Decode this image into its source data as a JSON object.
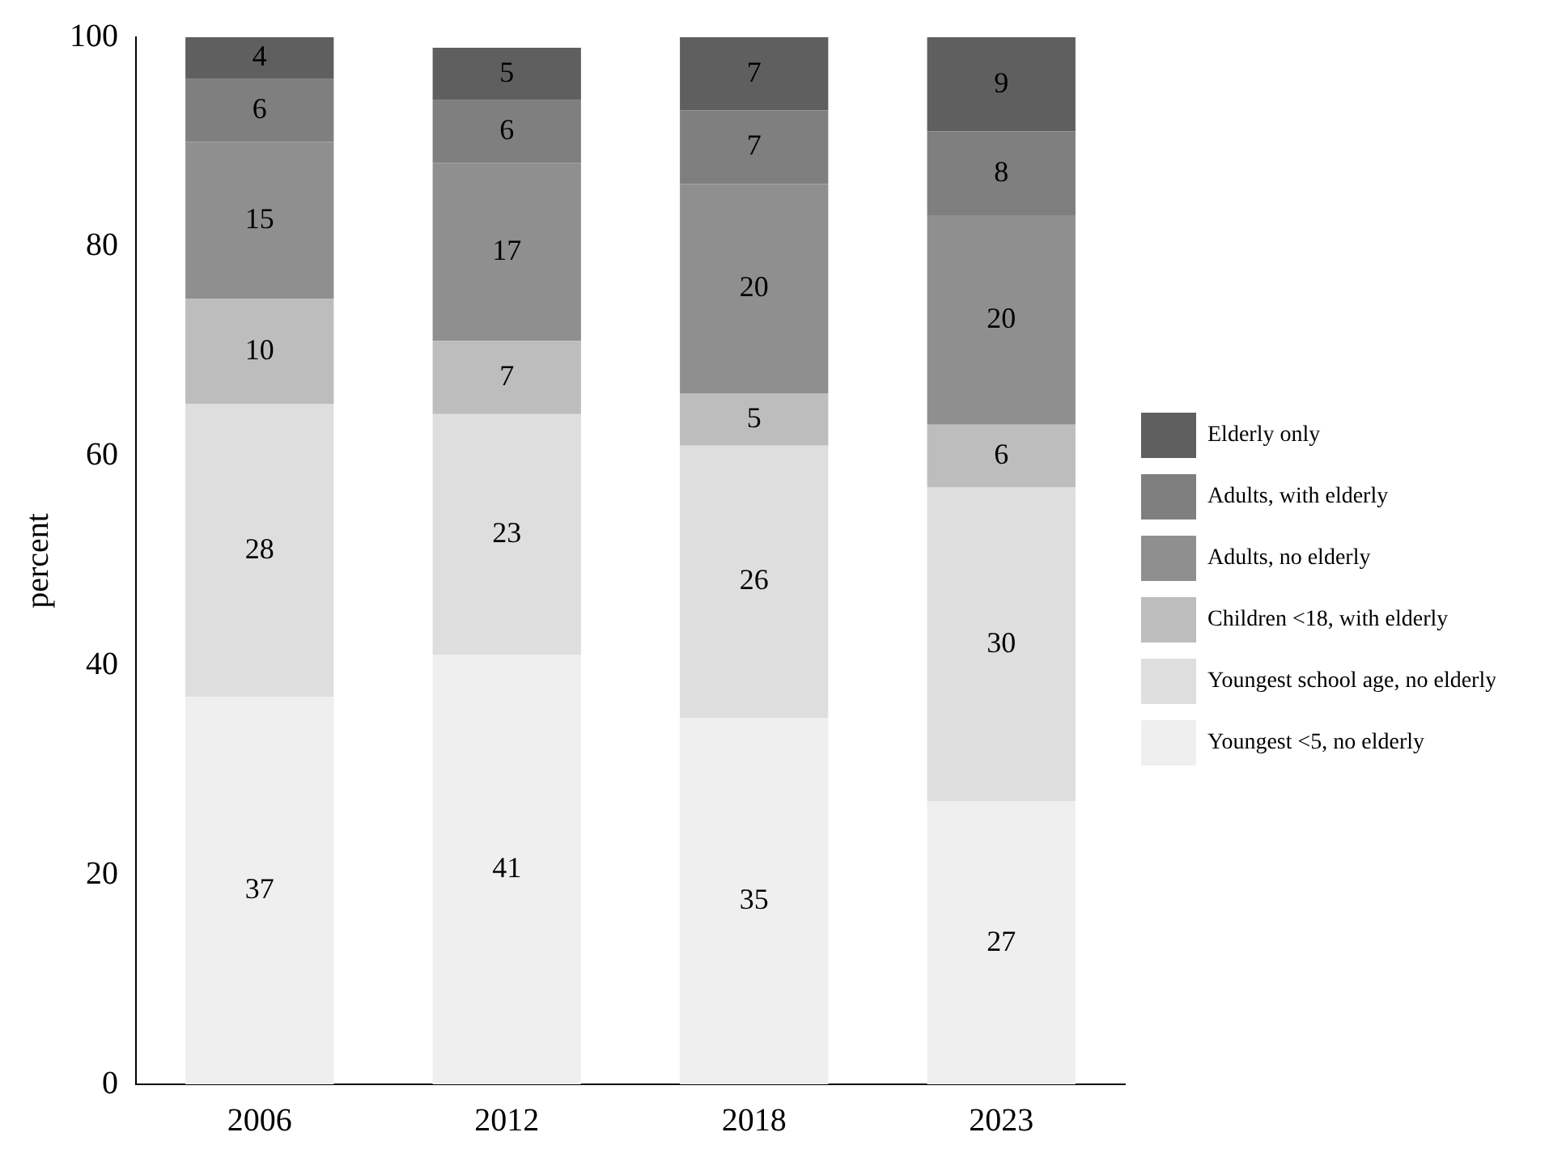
{
  "chart_data": {
    "type": "bar",
    "stacked": true,
    "ylabel": "percent",
    "categories": [
      "2006",
      "2012",
      "2018",
      "2023"
    ],
    "series": [
      {
        "name": "Youngest <5, no elderly",
        "color": "#efefef",
        "values": [
          37,
          41,
          35,
          27
        ]
      },
      {
        "name": "Youngest school age, no elderly",
        "color": "#dedede",
        "values": [
          28,
          23,
          26,
          30
        ]
      },
      {
        "name": "Children <18, with elderly",
        "color": "#bdbdbd",
        "values": [
          10,
          7,
          5,
          6
        ]
      },
      {
        "name": "Adults, no elderly",
        "color": "#8f8f8f",
        "values": [
          15,
          17,
          20,
          20
        ]
      },
      {
        "name": "Adults, with elderly",
        "color": "#7f7f7f",
        "values": [
          6,
          6,
          7,
          8
        ]
      },
      {
        "name": "Elderly only",
        "color": "#5f5f5f",
        "values": [
          4,
          5,
          7,
          9
        ]
      }
    ],
    "ylim": [
      0,
      100
    ],
    "yticks": [
      0,
      20,
      40,
      60,
      80,
      100
    ],
    "grid": false,
    "legend": "right",
    "data_labels": true
  }
}
